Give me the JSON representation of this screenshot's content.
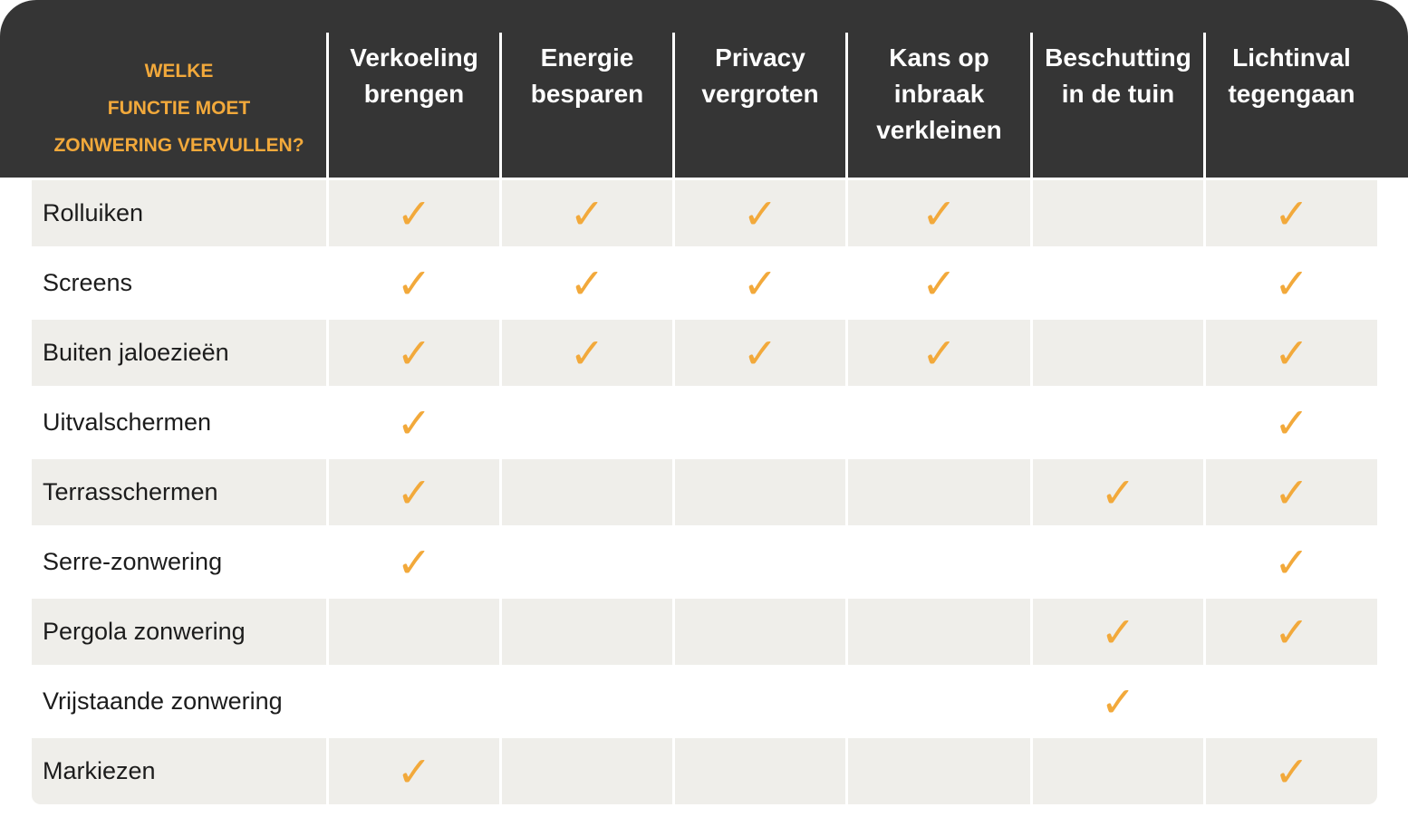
{
  "header": {
    "corner_lines": [
      "WELKE",
      "FUNCTIE MOET",
      "ZONWERING VERVULLEN?"
    ],
    "columns": [
      {
        "lines": [
          "Verkoeling",
          "brengen"
        ]
      },
      {
        "lines": [
          "Energie",
          "besparen"
        ]
      },
      {
        "lines": [
          "Privacy",
          "vergroten"
        ]
      },
      {
        "lines": [
          "Kans op",
          "inbraak",
          "verkleinen"
        ]
      },
      {
        "lines": [
          "Beschutting",
          "in de tuin"
        ]
      },
      {
        "lines": [
          "Lichtinval",
          "tegengaan"
        ]
      }
    ]
  },
  "check_symbol": "✓",
  "colors": {
    "header_bg": "#353535",
    "accent": "#f2a93b",
    "row_shade": "#efeeea"
  },
  "rows": [
    {
      "label": "Rolluiken",
      "checks": [
        true,
        true,
        true,
        true,
        false,
        true
      ]
    },
    {
      "label": "Screens",
      "checks": [
        true,
        true,
        true,
        true,
        false,
        true
      ]
    },
    {
      "label": "Buiten jaloezieën",
      "checks": [
        true,
        true,
        true,
        true,
        false,
        true
      ]
    },
    {
      "label": "Uitvalschermen",
      "checks": [
        true,
        false,
        false,
        false,
        false,
        true
      ]
    },
    {
      "label": "Terrasschermen",
      "checks": [
        true,
        false,
        false,
        false,
        true,
        true
      ]
    },
    {
      "label": "Serre-zonwering",
      "checks": [
        true,
        false,
        false,
        false,
        false,
        true
      ]
    },
    {
      "label": "Pergola zonwering",
      "checks": [
        false,
        false,
        false,
        false,
        true,
        true
      ]
    },
    {
      "label": "Vrijstaande zonwering",
      "checks": [
        false,
        false,
        false,
        false,
        true,
        false
      ]
    },
    {
      "label": "Markiezen",
      "checks": [
        true,
        false,
        false,
        false,
        false,
        true
      ]
    }
  ]
}
